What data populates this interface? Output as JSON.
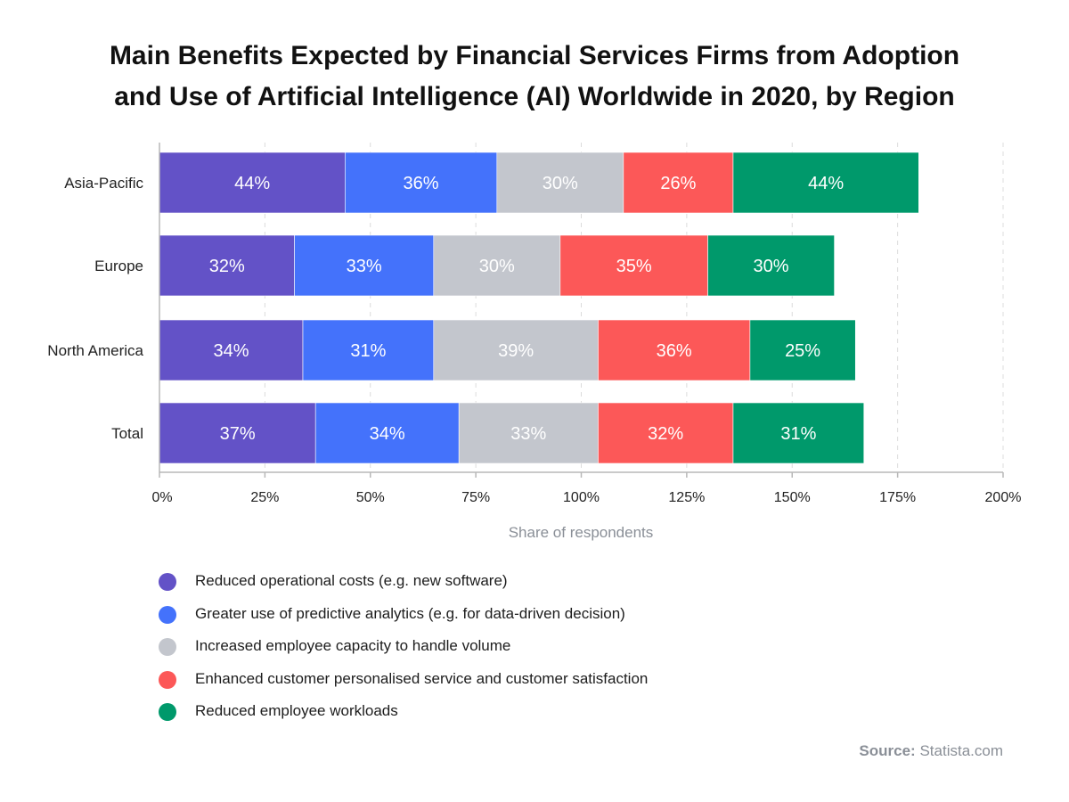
{
  "title_lines": [
    "Main Benefits Expected by Financial Services Firms from Adoption",
    "and Use of Artificial Intelligence (AI) Worldwide in 2020, by Region"
  ],
  "source": {
    "label": "Source:",
    "value": "Statista.com"
  },
  "chart_data": {
    "type": "bar",
    "orientation": "horizontal",
    "stacked": true,
    "title": "Main Benefits Expected by Financial Services Firms from Adoption and Use of Artificial Intelligence (AI) Worldwide in 2020, by Region",
    "xlabel": "Share of respondents",
    "ylabel": "",
    "categories": [
      "Asia-Pacific",
      "Europe",
      "North America",
      "Total"
    ],
    "xlim": [
      0,
      200
    ],
    "xticks": [
      "0%",
      "25%",
      "50%",
      "75%",
      "100%",
      "125%",
      "150%",
      "175%",
      "200%"
    ],
    "xtick_values": [
      0,
      25,
      50,
      75,
      100,
      125,
      150,
      175,
      200
    ],
    "grid": "vertical dashed",
    "legend": "bottom-left",
    "series": [
      {
        "name": "Reduced operational costs (e.g. new software)",
        "color": "#6352c7",
        "values": [
          44,
          32,
          34,
          37
        ]
      },
      {
        "name": "Greater use of predictive analytics (e.g. for data-driven decision)",
        "color": "#4472fb",
        "values": [
          36,
          33,
          31,
          34
        ]
      },
      {
        "name": "Increased employee capacity to handle volume",
        "color": "#c3c6cd",
        "values": [
          30,
          30,
          39,
          33
        ]
      },
      {
        "name": "Enhanced customer personalised service and customer satisfaction",
        "color": "#fc5858",
        "values": [
          26,
          35,
          36,
          32
        ]
      },
      {
        "name": "Reduced employee workloads",
        "color": "#00996b",
        "values": [
          44,
          30,
          25,
          31
        ]
      }
    ]
  }
}
